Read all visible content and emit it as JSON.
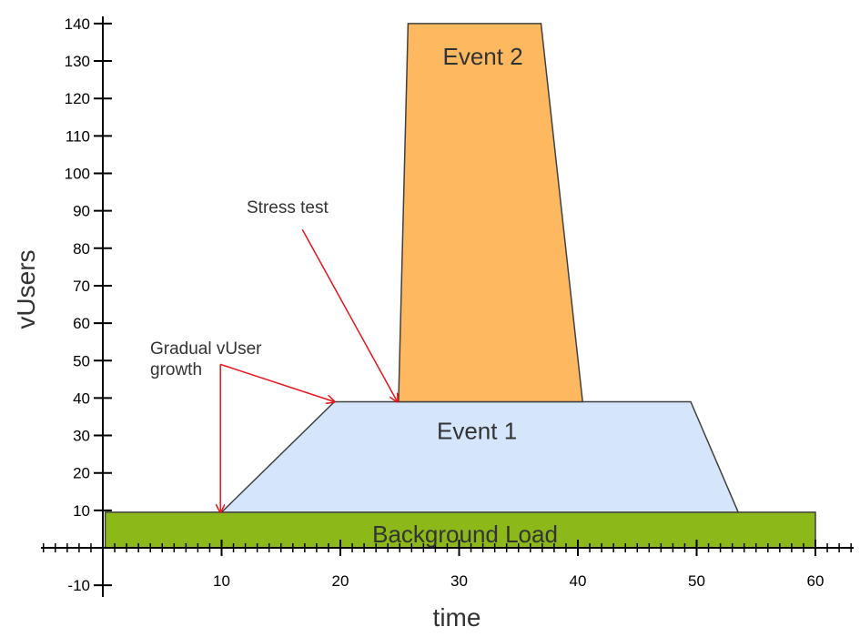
{
  "chart_data": {
    "type": "area",
    "title": "",
    "xlabel": "time",
    "ylabel": "vUsers",
    "xlim": [
      0,
      62
    ],
    "ylim": [
      -12,
      145
    ],
    "x_ticks": [
      10,
      20,
      30,
      40,
      50,
      60
    ],
    "x_tick_labels": [
      "10",
      "20",
      "30",
      "40",
      "50",
      "60"
    ],
    "y_ticks": [
      -10,
      10,
      20,
      30,
      40,
      50,
      60,
      70,
      80,
      90,
      100,
      110,
      120,
      130,
      140
    ],
    "y_tick_labels": [
      "-10",
      "10",
      "20",
      "30",
      "40",
      "50",
      "60",
      "70",
      "80",
      "90",
      "100",
      "110",
      "120",
      "130",
      "140"
    ],
    "series": [
      {
        "name": "Background Load",
        "color": "#8cb81a",
        "points": [
          [
            0.2,
            0
          ],
          [
            0.2,
            9.5
          ],
          [
            60,
            9.5
          ],
          [
            60,
            0
          ]
        ]
      },
      {
        "name": "Event 1",
        "color": "#d5e6fc",
        "points": [
          [
            10,
            9.5
          ],
          [
            19.5,
            39
          ],
          [
            49.5,
            39
          ],
          [
            53.5,
            9.5
          ]
        ]
      },
      {
        "name": "Event 2",
        "color": "#fdb860",
        "points": [
          [
            24.9,
            39
          ],
          [
            25.7,
            140
          ],
          [
            36.9,
            140
          ],
          [
            40.4,
            39
          ]
        ]
      }
    ],
    "annotations": [
      {
        "text": "Stress test",
        "arrows": [
          {
            "from": [
              16.8,
              85
            ],
            "to": [
              24.8,
              39
            ]
          }
        ]
      },
      {
        "lines": [
          "Gradual vUser",
          "growth"
        ],
        "arrows": [
          {
            "from": [
              9.9,
              49
            ],
            "to": [
              19.5,
              39
            ]
          },
          {
            "from": [
              9.9,
              49
            ],
            "to": [
              9.9,
              9.5
            ]
          }
        ]
      }
    ]
  }
}
